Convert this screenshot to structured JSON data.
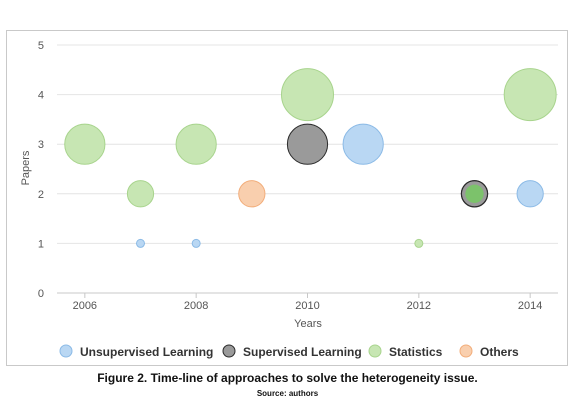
{
  "chart_data": {
    "type": "scatter",
    "subtype": "bubble",
    "xlabel": "Years",
    "ylabel": "Papers",
    "xlim": [
      2005.5,
      2014.5
    ],
    "ylim": [
      0,
      5
    ],
    "xticks": [
      2006,
      2008,
      2010,
      2012,
      2014
    ],
    "yticks": [
      0,
      1,
      2,
      3,
      4,
      5
    ],
    "grid": true,
    "legend_position": "bottom",
    "series": [
      {
        "name": "Unsupervised Learning",
        "fill": "#b9d7f3",
        "stroke": "#8bbae6",
        "points": [
          {
            "x": 2007,
            "y": 1
          },
          {
            "x": 2008,
            "y": 1
          },
          {
            "x": 2011,
            "y": 3
          },
          {
            "x": 2014,
            "y": 2
          }
        ]
      },
      {
        "name": "Supervised Learning",
        "fill": "#9a9a9a",
        "stroke": "#2b2b2b",
        "points": [
          {
            "x": 2010,
            "y": 3
          },
          {
            "x": 2013,
            "y": 2
          }
        ]
      },
      {
        "name": "Statistics",
        "fill": "#c7e6b3",
        "stroke": "#a8d48d",
        "points": [
          {
            "x": 2006,
            "y": 3
          },
          {
            "x": 2007,
            "y": 2
          },
          {
            "x": 2008,
            "y": 3
          },
          {
            "x": 2010,
            "y": 4
          },
          {
            "x": 2012,
            "y": 1
          },
          {
            "x": 2014,
            "y": 4
          }
        ]
      },
      {
        "name": "Others",
        "fill": "#f9cfae",
        "stroke": "#f2ad7a",
        "points": [
          {
            "x": 2009,
            "y": 2
          }
        ]
      }
    ],
    "overlay": [
      {
        "series": "Statistics",
        "x": 2013,
        "y": 2,
        "fill": "#7cc26b",
        "stroke": "#2b2b2b"
      }
    ]
  },
  "caption": {
    "title": "Figure 2. Time-line of approaches to solve the heterogeneity issue.",
    "source": "Source: authors"
  }
}
